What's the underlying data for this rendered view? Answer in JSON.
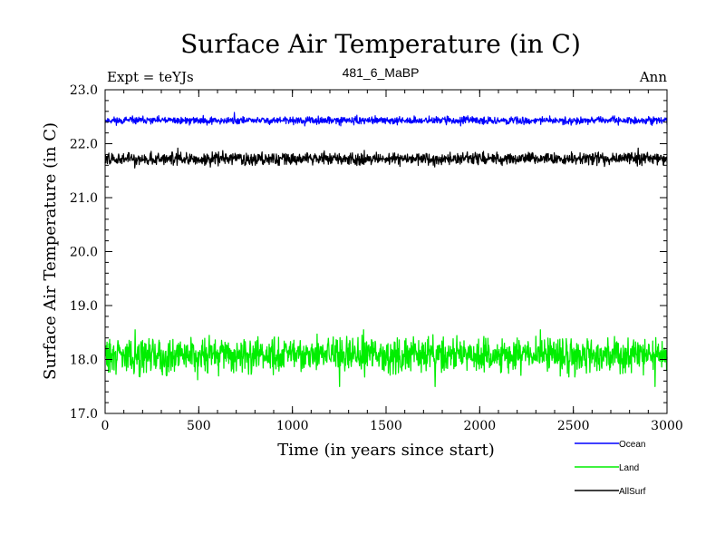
{
  "chart_data": {
    "type": "line",
    "title": "Surface Air Temperature (in C)",
    "subtitle": "481_6_MaBP",
    "expt_label": "Expt = teYJs",
    "period_label": "Ann",
    "xlabel": "Time (in years since start)",
    "ylabel": "Surface Air Temperature (in C)",
    "xlim": [
      0,
      3000
    ],
    "ylim": [
      17.0,
      23.0
    ],
    "x_ticks": [
      0,
      500,
      1000,
      1500,
      2000,
      2500,
      3000
    ],
    "x_tick_labels": [
      "0",
      "500",
      "1000",
      "1500",
      "2000",
      "2500",
      "3000"
    ],
    "y_ticks": [
      17.0,
      18.0,
      19.0,
      20.0,
      21.0,
      22.0,
      23.0
    ],
    "y_tick_labels": [
      "17.0",
      "18.0",
      "19.0",
      "20.0",
      "21.0",
      "22.0",
      "23.0"
    ],
    "legend_position": "bottom-right, below plot",
    "series": [
      {
        "name": "Ocean",
        "color": "#0000ff",
        "mean": 22.43,
        "noise_range": [
          22.33,
          22.58
        ],
        "x_start": 0,
        "x_end": 3000
      },
      {
        "name": "Land",
        "color": "#00ee00",
        "mean": 18.08,
        "noise_range": [
          17.5,
          18.55
        ],
        "x_start": 0,
        "x_end": 3000
      },
      {
        "name": "AllSurf",
        "color": "#000000",
        "mean": 21.72,
        "noise_range": [
          21.55,
          21.92
        ],
        "x_start": 0,
        "x_end": 3000
      }
    ]
  }
}
